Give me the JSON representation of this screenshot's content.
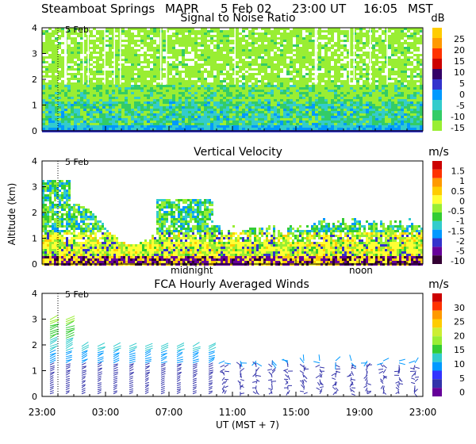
{
  "header": {
    "site": "Steamboat Springs",
    "instrument": "MAPR",
    "date": "5 Feb 02",
    "ut_time": "23:00 UT",
    "local_time": "16:05",
    "tz": "MST"
  },
  "chart_data": [
    {
      "type": "heatmap",
      "title": "Signal to Noise Ratio",
      "date_marker": "5 Feb",
      "units": "dB",
      "ylim": [
        0,
        4
      ],
      "y_ticks": [
        "0",
        "1",
        "2",
        "3",
        "4"
      ],
      "colorbar_labels": [
        "25",
        "20",
        "15",
        "10",
        "5",
        "0",
        "-5",
        "-10",
        "-15"
      ],
      "colors": [
        "#ffcc00",
        "#ff9900",
        "#ff3300",
        "#cc0000",
        "#330066",
        "#3333cc",
        "#0099ff",
        "#33cccc",
        "#33cc66",
        "#99ee33"
      ]
    },
    {
      "type": "heatmap",
      "title": "Vertical Velocity",
      "date_marker": "5 Feb",
      "units": "m/s",
      "ylabel": "Altitude (km)",
      "ylim": [
        0,
        4
      ],
      "y_ticks": [
        "0",
        "1",
        "2",
        "3",
        "4"
      ],
      "colorbar_labels": [
        "1.5",
        "1",
        "0.5",
        "0",
        "-0.5",
        "-1",
        "-1.5",
        "-2",
        "-5",
        "-10"
      ],
      "colors": [
        "#cc0000",
        "#ff3300",
        "#ff9900",
        "#ffcc00",
        "#ffff33",
        "#99ee33",
        "#33cc33",
        "#33cccc",
        "#0099ff",
        "#3333cc",
        "#660099",
        "#330033"
      ],
      "annotations": [
        "midnight",
        "noon"
      ]
    },
    {
      "type": "scatter",
      "title": "FCA Hourly Averaged Winds",
      "date_marker": "5 Feb",
      "units": "m/s",
      "ylim": [
        0,
        4
      ],
      "y_ticks": [
        "0",
        "1",
        "2",
        "3",
        "4"
      ],
      "colorbar_labels": [
        "30",
        "25",
        "20",
        "15",
        "10",
        "5",
        "0"
      ],
      "colors": [
        "#cc0000",
        "#ff3300",
        "#ff9900",
        "#ffcc00",
        "#ccee33",
        "#99ee33",
        "#33cc33",
        "#33cccc",
        "#0099ff",
        "#3333ff",
        "#3333aa",
        "#660099"
      ],
      "xlim_hours_ut": [
        23,
        47
      ],
      "x_tick_labels": [
        "23:00",
        "03:00",
        "07:00",
        "11:00",
        "15:00",
        "19:00",
        "23:00"
      ],
      "xlabel": "UT  (MST + 7)",
      "wind_speed_by_altitude_ms": [
        {
          "altitude_km": 0.5,
          "speed": 2
        },
        {
          "altitude_km": 1.0,
          "speed": 4
        },
        {
          "altitude_km": 1.5,
          "speed": 8
        },
        {
          "altitude_km": 2.0,
          "speed": 12
        },
        {
          "altitude_km": 2.5,
          "speed": 15
        },
        {
          "altitude_km": 3.0,
          "speed": 16
        }
      ]
    }
  ]
}
